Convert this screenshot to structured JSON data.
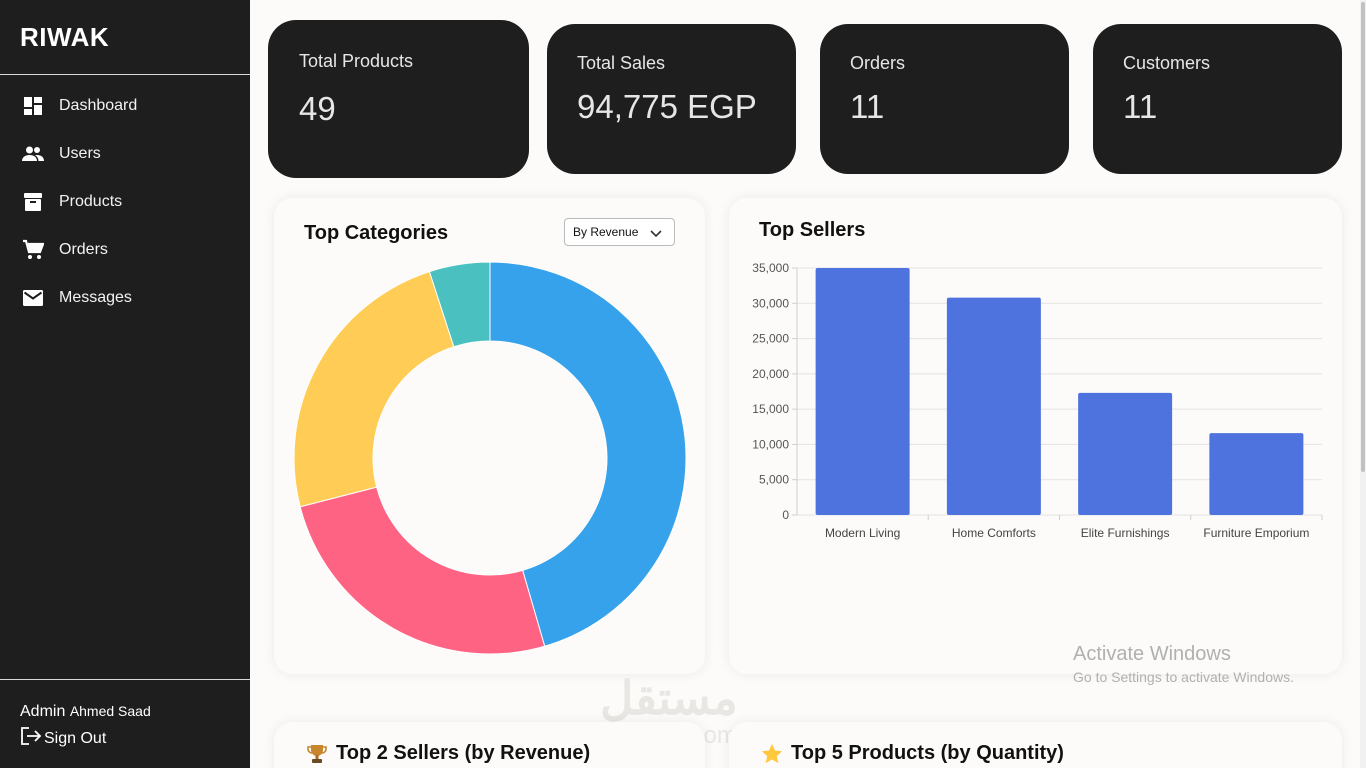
{
  "sidebar": {
    "brand": "RIWAK",
    "items": [
      {
        "label": "Dashboard",
        "icon": "dashboard-icon"
      },
      {
        "label": "Users",
        "icon": "users-icon"
      },
      {
        "label": "Products",
        "icon": "archive-icon"
      },
      {
        "label": "Orders",
        "icon": "cart-icon"
      },
      {
        "label": "Messages",
        "icon": "mail-icon"
      }
    ],
    "admin_role": "Admin",
    "admin_name": "Ahmed Saad",
    "signout_label": "Sign Out"
  },
  "stats": [
    {
      "label": "Total Products",
      "value": "49"
    },
    {
      "label": "Total Sales",
      "value": "94,775 EGP"
    },
    {
      "label": "Orders",
      "value": "11"
    },
    {
      "label": "Customers",
      "value": "11"
    }
  ],
  "top_categories": {
    "title": "Top Categories",
    "dropdown_value": "By Revenue"
  },
  "top_sellers": {
    "title": "Top Sellers"
  },
  "bottom": {
    "left_title": "Top 2 Sellers (by Revenue)",
    "right_title": "Top 5 Products (by Quantity)"
  },
  "watermark": {
    "line1": "Activate Windows",
    "line2": "Go to Settings to activate Windows."
  },
  "brand_watermark": {
    "arabic": "مستقل",
    "latin": "mostaql.com"
  },
  "colors": {
    "sidebar_bg": "#1e1e1e",
    "bar": "#4e73df",
    "donut": [
      "#36a2eb",
      "#ff6384",
      "#ffcd56",
      "#4bc0c0"
    ]
  },
  "chart_data": [
    {
      "type": "pie",
      "title": "Top Categories",
      "donut": true,
      "values": [
        45.5,
        25.5,
        24,
        5
      ],
      "colors": [
        "#36a2eb",
        "#ff6384",
        "#ffcd56",
        "#4bc0c0"
      ]
    },
    {
      "type": "bar",
      "title": "Top Sellers",
      "categories": [
        "Modern Living",
        "Home Comforts",
        "Elite Furnishings",
        "Furniture Emporium"
      ],
      "values": [
        35000,
        30800,
        17300,
        11600
      ],
      "ylim": [
        0,
        35000
      ],
      "yticks": [
        0,
        5000,
        10000,
        15000,
        20000,
        25000,
        30000,
        35000
      ],
      "ytick_labels": [
        "0",
        "5,000",
        "10,000",
        "15,000",
        "20,000",
        "25,000",
        "30,000",
        "35,000"
      ],
      "grid": true,
      "color": "#4e73df"
    }
  ]
}
